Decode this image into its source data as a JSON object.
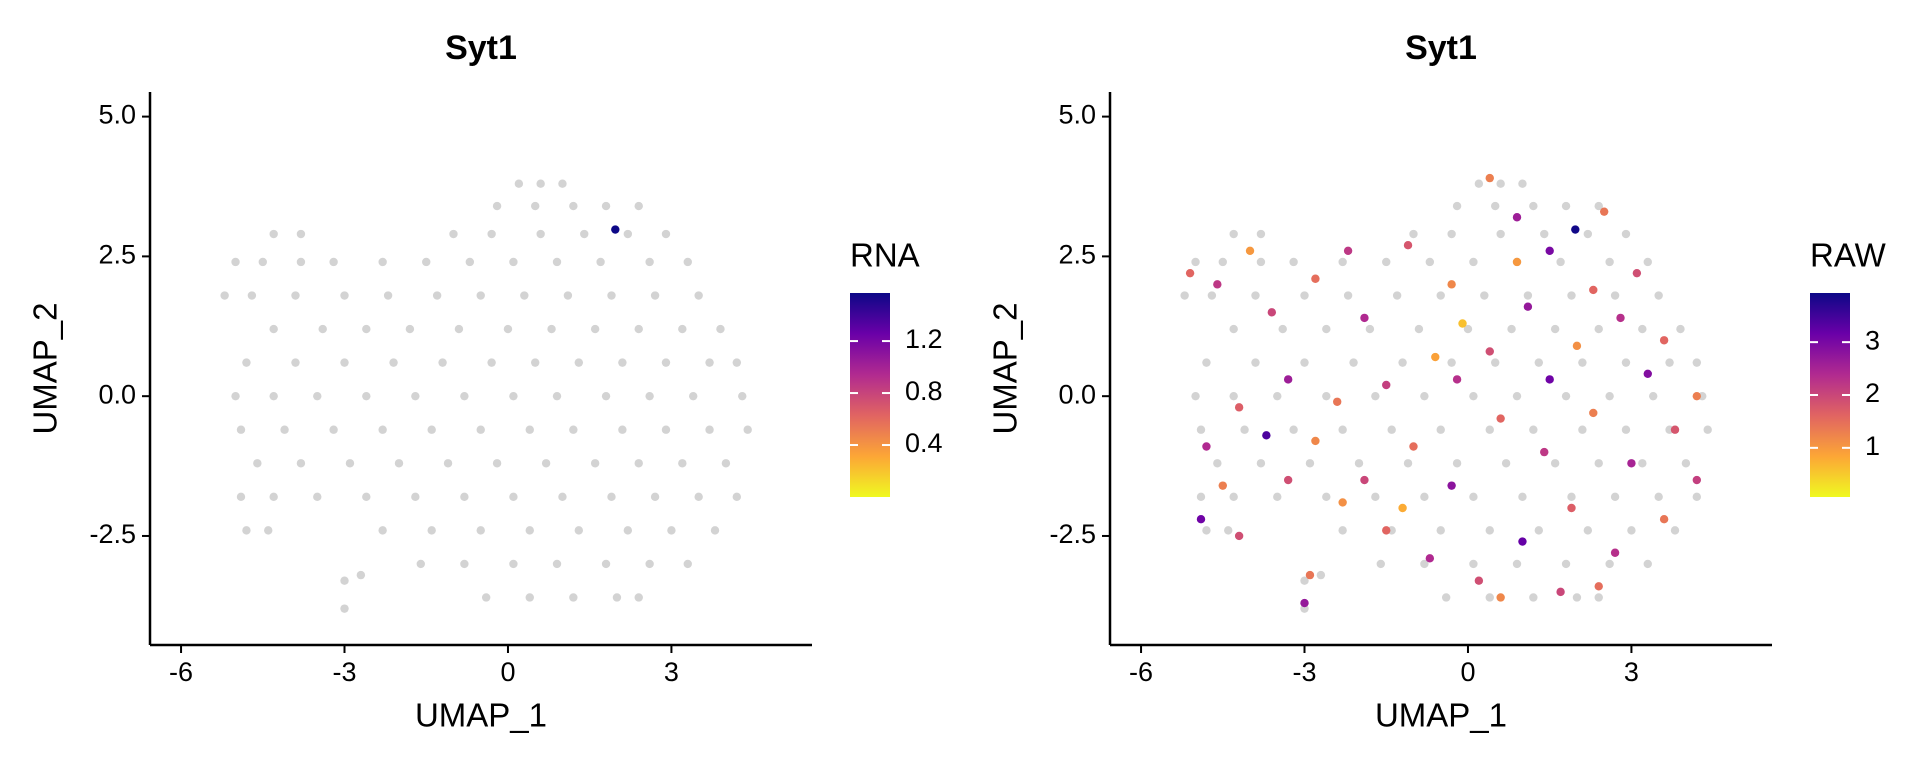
{
  "chart_data": [
    {
      "type": "scatter",
      "title": "Syt1",
      "x_label": "UMAP_1",
      "y_label": "UMAP_2",
      "xlim": [
        -6.57,
        5.58
      ],
      "ylim": [
        -4.45,
        5.44
      ],
      "xticks": [
        -6,
        -3,
        0,
        3
      ],
      "yticks": [
        {
          "value": 5,
          "label": "5.0"
        },
        2.5,
        {
          "value": 0,
          "label": "0.0"
        },
        -2.5
      ],
      "series": [
        {
          "color": "#d3d3d3",
          "x": [
            0.2,
            0.6,
            1.0,
            -0.2,
            0.5,
            1.2,
            1.8,
            2.4,
            -4.3,
            -3.8,
            -1.0,
            -0.3,
            0.6,
            1.4,
            2.2,
            2.9,
            -5.0,
            -4.5,
            -3.8,
            -3.2,
            -2.3,
            -1.5,
            -0.7,
            0.1,
            0.9,
            1.7,
            2.6,
            3.3,
            -5.2,
            -4.7,
            -3.9,
            -3.0,
            -2.2,
            -1.3,
            -0.5,
            0.3,
            1.1,
            1.9,
            2.7,
            3.5,
            -4.3,
            -3.4,
            -2.6,
            -1.8,
            -0.9,
            0.0,
            0.8,
            1.6,
            2.4,
            3.2,
            3.9,
            -4.8,
            -3.9,
            -3.0,
            -2.1,
            -1.2,
            -0.3,
            0.5,
            1.3,
            2.1,
            2.9,
            3.7,
            4.2,
            -5.0,
            -4.3,
            -3.5,
            -2.6,
            -1.7,
            -0.8,
            0.1,
            0.9,
            1.8,
            2.6,
            3.4,
            4.3,
            -4.9,
            -4.1,
            -3.2,
            -2.3,
            -1.4,
            -0.5,
            0.4,
            1.2,
            2.1,
            2.9,
            3.7,
            4.4,
            -4.6,
            -3.8,
            -2.9,
            -2.0,
            -1.1,
            -0.2,
            0.7,
            1.6,
            2.4,
            3.2,
            4.0,
            -4.9,
            -4.3,
            -3.5,
            -2.6,
            -1.7,
            -0.8,
            0.1,
            1.0,
            1.9,
            2.7,
            3.5,
            4.2,
            -4.8,
            -4.4,
            -2.3,
            -1.4,
            -0.5,
            0.4,
            1.3,
            2.2,
            3.0,
            3.8,
            -1.6,
            -0.8,
            0.1,
            0.9,
            1.8,
            2.6,
            3.3,
            -0.4,
            0.4,
            1.2,
            2.0,
            2.4,
            -3.0,
            -2.7,
            -3.0
          ],
          "y": [
            3.8,
            3.8,
            3.8,
            3.4,
            3.4,
            3.4,
            3.4,
            3.4,
            2.9,
            2.9,
            2.9,
            2.9,
            2.9,
            2.9,
            2.9,
            2.9,
            2.4,
            2.4,
            2.4,
            2.4,
            2.4,
            2.4,
            2.4,
            2.4,
            2.4,
            2.4,
            2.4,
            2.4,
            1.8,
            1.8,
            1.8,
            1.8,
            1.8,
            1.8,
            1.8,
            1.8,
            1.8,
            1.8,
            1.8,
            1.8,
            1.2,
            1.2,
            1.2,
            1.2,
            1.2,
            1.2,
            1.2,
            1.2,
            1.2,
            1.2,
            1.2,
            0.6,
            0.6,
            0.6,
            0.6,
            0.6,
            0.6,
            0.6,
            0.6,
            0.6,
            0.6,
            0.6,
            0.6,
            0.0,
            0.0,
            0.0,
            0.0,
            0.0,
            0.0,
            0.0,
            0.0,
            0.0,
            0.0,
            0.0,
            0.0,
            -0.6,
            -0.6,
            -0.6,
            -0.6,
            -0.6,
            -0.6,
            -0.6,
            -0.6,
            -0.6,
            -0.6,
            -0.6,
            -0.6,
            -1.2,
            -1.2,
            -1.2,
            -1.2,
            -1.2,
            -1.2,
            -1.2,
            -1.2,
            -1.2,
            -1.2,
            -1.2,
            -1.8,
            -1.8,
            -1.8,
            -1.8,
            -1.8,
            -1.8,
            -1.8,
            -1.8,
            -1.8,
            -1.8,
            -1.8,
            -1.8,
            -2.4,
            -2.4,
            -2.4,
            -2.4,
            -2.4,
            -2.4,
            -2.4,
            -2.4,
            -2.4,
            -2.4,
            -3.0,
            -3.0,
            -3.0,
            -3.0,
            -3.0,
            -3.0,
            -3.0,
            -3.6,
            -3.6,
            -3.6,
            -3.6,
            -3.6,
            -3.3,
            -3.2,
            -3.8
          ]
        },
        {
          "x": [
            1.97
          ],
          "y": [
            2.98
          ],
          "values": [
            1.57
          ]
        }
      ],
      "colorbar": {
        "title": "RNA",
        "lim": [
          0,
          1.57
        ],
        "ticks": [
          0.4,
          0.8,
          1.2
        ],
        "colors": [
          "#f0f921",
          "#fca636",
          "#e16462",
          "#b12a90",
          "#6a00a8",
          "#0d0887"
        ]
      }
    },
    {
      "type": "scatter",
      "title": "Syt1",
      "x_label": "UMAP_1",
      "y_label": "UMAP_2",
      "xlim": [
        -6.57,
        5.58
      ],
      "ylim": [
        -4.45,
        5.44
      ],
      "xticks": [
        -6,
        -3,
        0,
        3
      ],
      "yticks": [
        {
          "value": 5,
          "label": "5.0"
        },
        2.5,
        {
          "value": 0,
          "label": "0.0"
        },
        -2.5
      ],
      "series": [
        {
          "color": "#d3d3d3",
          "x": [
            0.2,
            0.6,
            1.0,
            -0.2,
            0.5,
            1.2,
            1.8,
            2.4,
            -4.3,
            -3.8,
            -1.0,
            -0.3,
            0.6,
            1.4,
            2.2,
            2.9,
            -5.0,
            -4.5,
            -3.8,
            -3.2,
            -2.3,
            -1.5,
            -0.7,
            0.1,
            0.9,
            1.7,
            2.6,
            3.3,
            -5.2,
            -4.7,
            -3.9,
            -3.0,
            -2.2,
            -1.3,
            -0.5,
            0.3,
            1.1,
            1.9,
            2.7,
            3.5,
            -4.3,
            -3.4,
            -2.6,
            -1.8,
            -0.9,
            0.0,
            0.8,
            1.6,
            2.4,
            3.2,
            3.9,
            -4.8,
            -3.9,
            -3.0,
            -2.1,
            -1.2,
            -0.3,
            0.5,
            1.3,
            2.1,
            2.9,
            3.7,
            4.2,
            -5.0,
            -4.3,
            -3.5,
            -2.6,
            -1.7,
            -0.8,
            0.1,
            0.9,
            1.8,
            2.6,
            3.4,
            4.3,
            -4.9,
            -4.1,
            -3.2,
            -2.3,
            -1.4,
            -0.5,
            0.4,
            1.2,
            2.1,
            2.9,
            3.7,
            4.4,
            -4.6,
            -3.8,
            -2.9,
            -2.0,
            -1.1,
            -0.2,
            0.7,
            1.6,
            2.4,
            3.2,
            4.0,
            -4.9,
            -4.3,
            -3.5,
            -2.6,
            -1.7,
            -0.8,
            0.1,
            1.0,
            1.9,
            2.7,
            3.5,
            4.2,
            -4.8,
            -4.4,
            -2.3,
            -1.4,
            -0.5,
            0.4,
            1.3,
            2.2,
            3.0,
            3.8,
            -1.6,
            -0.8,
            0.1,
            0.9,
            1.8,
            2.6,
            3.3,
            -0.4,
            0.4,
            1.2,
            2.0,
            2.4,
            -3.0,
            -2.7,
            -3.0
          ],
          "y": [
            3.8,
            3.8,
            3.8,
            3.4,
            3.4,
            3.4,
            3.4,
            3.4,
            2.9,
            2.9,
            2.9,
            2.9,
            2.9,
            2.9,
            2.9,
            2.9,
            2.4,
            2.4,
            2.4,
            2.4,
            2.4,
            2.4,
            2.4,
            2.4,
            2.4,
            2.4,
            2.4,
            2.4,
            1.8,
            1.8,
            1.8,
            1.8,
            1.8,
            1.8,
            1.8,
            1.8,
            1.8,
            1.8,
            1.8,
            1.8,
            1.2,
            1.2,
            1.2,
            1.2,
            1.2,
            1.2,
            1.2,
            1.2,
            1.2,
            1.2,
            1.2,
            0.6,
            0.6,
            0.6,
            0.6,
            0.6,
            0.6,
            0.6,
            0.6,
            0.6,
            0.6,
            0.6,
            0.6,
            0.0,
            0.0,
            0.0,
            0.0,
            0.0,
            0.0,
            0.0,
            0.0,
            0.0,
            0.0,
            0.0,
            0.0,
            -0.6,
            -0.6,
            -0.6,
            -0.6,
            -0.6,
            -0.6,
            -0.6,
            -0.6,
            -0.6,
            -0.6,
            -0.6,
            -0.6,
            -1.2,
            -1.2,
            -1.2,
            -1.2,
            -1.2,
            -1.2,
            -1.2,
            -1.2,
            -1.2,
            -1.2,
            -1.2,
            -1.8,
            -1.8,
            -1.8,
            -1.8,
            -1.8,
            -1.8,
            -1.8,
            -1.8,
            -1.8,
            -1.8,
            -1.8,
            -1.8,
            -2.4,
            -2.4,
            -2.4,
            -2.4,
            -2.4,
            -2.4,
            -2.4,
            -2.4,
            -2.4,
            -2.4,
            -3.0,
            -3.0,
            -3.0,
            -3.0,
            -3.0,
            -3.0,
            -3.0,
            -3.6,
            -3.6,
            -3.6,
            -3.6,
            -3.6,
            -3.3,
            -3.2,
            -3.8
          ]
        },
        {
          "x": [
            -5.1,
            -4.6,
            -4.0,
            -3.6,
            -2.8,
            -1.9,
            -1.1,
            -0.3,
            0.4,
            0.9,
            1.5,
            1.97,
            2.5,
            3.1,
            3.6,
            2.8,
            2.0,
            1.1,
            0.4,
            -0.6,
            -1.5,
            -2.4,
            -3.3,
            -4.2,
            -4.8,
            -4.5,
            -4.9,
            -4.2,
            -3.7,
            -2.8,
            -1.9,
            -1.0,
            -0.3,
            0.6,
            1.4,
            2.3,
            3.0,
            3.8,
            4.2,
            3.6,
            2.7,
            1.9,
            1.0,
            0.2,
            -0.7,
            -1.5,
            -2.3,
            -2.9,
            -3.0,
            0.6,
            1.7,
            2.4,
            3.3,
            4.2,
            -0.1,
            0.9,
            -2.2,
            2.3,
            1.5,
            -1.2,
            -0.2,
            -3.3
          ],
          "y": [
            2.2,
            2.0,
            2.6,
            1.5,
            2.1,
            1.4,
            2.7,
            2.0,
            3.9,
            3.2,
            2.6,
            2.98,
            3.3,
            2.2,
            1.0,
            1.4,
            0.9,
            1.6,
            0.8,
            0.7,
            0.2,
            -0.1,
            0.3,
            -0.2,
            -0.9,
            -1.6,
            -2.2,
            -2.5,
            -0.7,
            -0.8,
            -1.5,
            -0.9,
            -1.6,
            -0.4,
            -1.0,
            -0.3,
            -1.2,
            -0.6,
            -1.5,
            -2.2,
            -2.8,
            -2.0,
            -2.6,
            -3.3,
            -2.9,
            -2.4,
            -1.9,
            -3.2,
            -3.7,
            -3.6,
            -3.5,
            -3.4,
            0.4,
            0.0,
            1.3,
            2.4,
            2.6,
            1.9,
            0.3,
            -2.0,
            0.3,
            -1.5
          ],
          "values": [
            1.6,
            2.2,
            1.0,
            2.0,
            1.5,
            2.4,
            1.8,
            1.2,
            1.3,
            2.6,
            3.0,
            3.9,
            1.4,
            1.9,
            1.6,
            2.3,
            1.1,
            2.7,
            1.9,
            0.9,
            2.1,
            1.4,
            2.6,
            1.7,
            2.4,
            1.3,
            3.1,
            1.9,
            3.4,
            1.2,
            2.0,
            1.5,
            2.8,
            1.6,
            2.2,
            1.3,
            2.5,
            1.8,
            2.1,
            1.4,
            2.3,
            1.7,
            3.2,
            1.9,
            2.4,
            1.6,
            1.1,
            1.4,
            2.7,
            1.2,
            2.0,
            1.5,
            2.9,
            1.3,
            0.6,
            1.0,
            2.2,
            1.6,
            3.1,
            0.8,
            2.3,
            1.9
          ]
        }
      ],
      "colorbar": {
        "title": "RAW",
        "lim": [
          0.07,
          3.93
        ],
        "ticks": [
          1,
          2,
          3
        ],
        "colors": [
          "#f0f921",
          "#fca636",
          "#e16462",
          "#b12a90",
          "#6a00a8",
          "#0d0887"
        ]
      }
    }
  ]
}
